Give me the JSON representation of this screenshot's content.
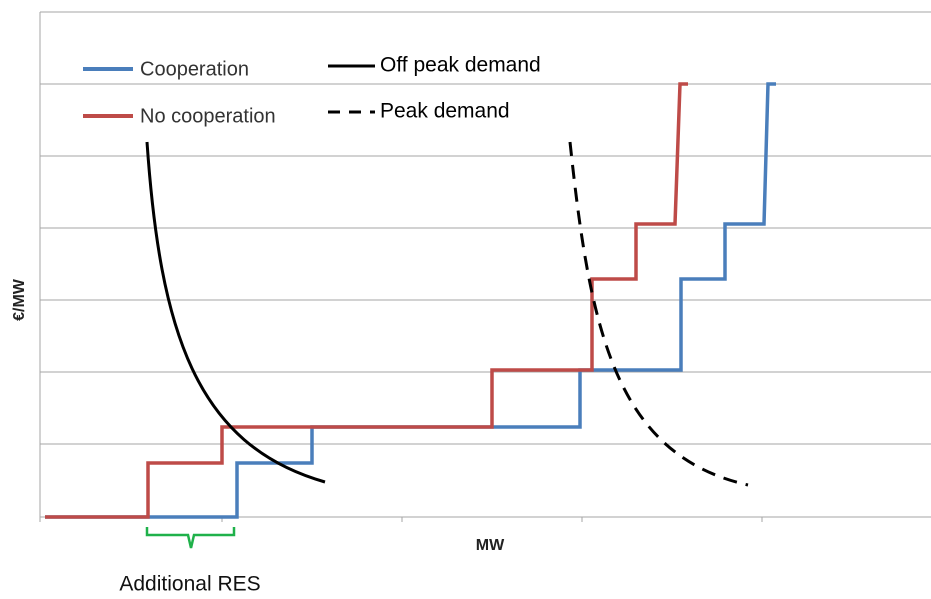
{
  "chart": {
    "legend": [
      "Cooperation",
      "No cooperation",
      "Off peak demand",
      "Peak demand"
    ],
    "y_axis_label": "€/MW",
    "x_axis_label": "MW",
    "annotation": "Additional RES"
  }
}
